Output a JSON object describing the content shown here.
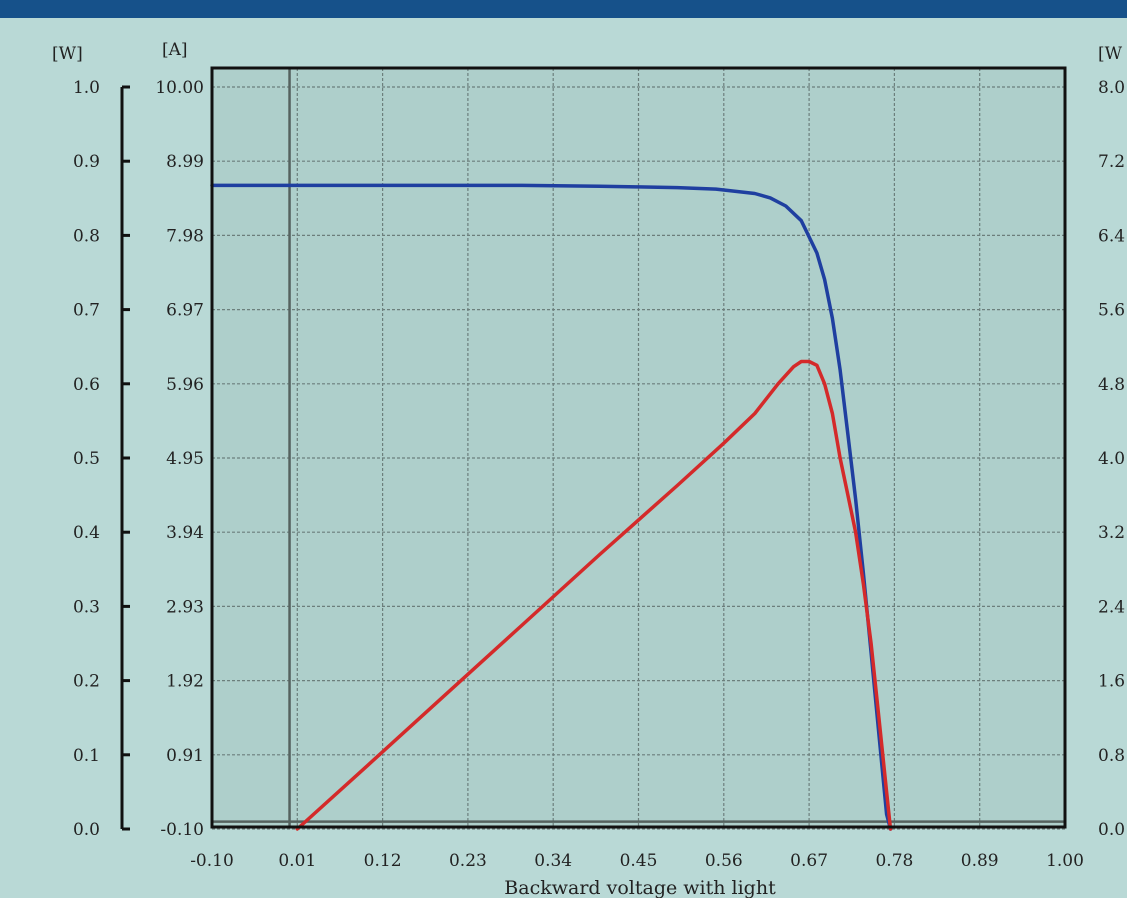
{
  "colors": {
    "background": "#b9d9d6",
    "plot_background": "#aecfcb",
    "header_bar": "#16518a",
    "current_curve": "#1f3fa0",
    "power_curve": "#d42a2a",
    "grid": "#6c7f7c"
  },
  "chart_data": {
    "type": "line",
    "title": "",
    "xlabel": "Backward voltage with light",
    "xlim": [
      -0.1,
      1.0
    ],
    "x_ticks": [
      "-0.10",
      "0.01",
      "0.12",
      "0.23",
      "0.34",
      "0.45",
      "0.56",
      "0.67",
      "0.78",
      "0.89",
      "1.00"
    ],
    "axes": {
      "left_outer": {
        "unit": "[W]",
        "range": [
          0.0,
          1.0
        ],
        "ticks": [
          "0.0",
          "0.1",
          "0.2",
          "0.3",
          "0.4",
          "0.5",
          "0.6",
          "0.7",
          "0.8",
          "0.9",
          "1.0"
        ]
      },
      "left_inner": {
        "unit": "[A]",
        "range": [
          -0.1,
          10.0
        ],
        "ticks": [
          "-0.10",
          "0.91",
          "1.92",
          "2.93",
          "3.94",
          "4.95",
          "5.96",
          "6.97",
          "7.98",
          "8.99",
          "10.00"
        ]
      },
      "right": {
        "unit": "[W",
        "range": [
          0.0,
          8.0
        ],
        "ticks": [
          "0.0",
          "0.8",
          "1.6",
          "2.4",
          "3.2",
          "4.0",
          "4.8",
          "5.6",
          "6.4",
          "7.2",
          "8.0"
        ]
      }
    },
    "grid": true,
    "series": [
      {
        "axis": "left_inner",
        "x": [
          -0.1,
          0.0,
          0.1,
          0.2,
          0.3,
          0.4,
          0.45,
          0.5,
          0.55,
          0.6,
          0.62,
          0.64,
          0.66,
          0.68,
          0.69,
          0.7,
          0.71,
          0.72,
          0.73,
          0.74,
          0.75,
          0.76,
          0.77,
          0.775
        ],
        "y": [
          8.66,
          8.66,
          8.66,
          8.66,
          8.66,
          8.65,
          8.64,
          8.63,
          8.61,
          8.55,
          8.49,
          8.38,
          8.18,
          7.74,
          7.38,
          6.85,
          6.15,
          5.27,
          4.39,
          3.38,
          2.3,
          1.19,
          0.1,
          -0.1
        ]
      },
      {
        "axis": "left_outer",
        "x": [
          0.01,
          0.1,
          0.2,
          0.3,
          0.4,
          0.5,
          0.56,
          0.6,
          0.63,
          0.65,
          0.66,
          0.67,
          0.68,
          0.69,
          0.7,
          0.71,
          0.72,
          0.73,
          0.74,
          0.75,
          0.76,
          0.77,
          0.775
        ],
        "y": [
          0.0,
          0.085,
          0.18,
          0.275,
          0.37,
          0.463,
          0.52,
          0.56,
          0.6,
          0.623,
          0.63,
          0.63,
          0.625,
          0.6,
          0.56,
          0.5,
          0.45,
          0.4,
          0.33,
          0.25,
          0.15,
          0.05,
          0.0
        ]
      }
    ]
  }
}
